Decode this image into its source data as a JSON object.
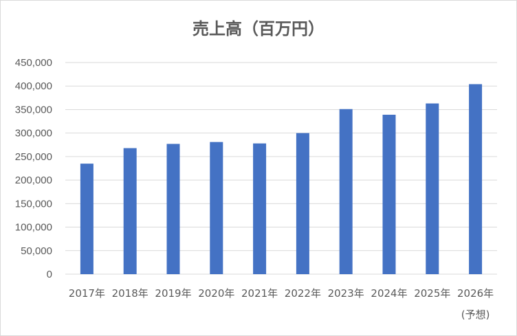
{
  "chart_data": {
    "type": "bar",
    "title": "売上高（百万円）",
    "categories": [
      "2017年",
      "2018年",
      "2019年",
      "2020年",
      "2021年",
      "2022年",
      "2023年",
      "2024年",
      "2025年",
      "2026年"
    ],
    "category_notes": [
      "",
      "",
      "",
      "",
      "",
      "",
      "",
      "",
      "",
      "(予想)"
    ],
    "values": [
      235000,
      268000,
      277000,
      281000,
      278000,
      300000,
      351000,
      339000,
      363000,
      404000
    ],
    "ylim": [
      0,
      450000
    ],
    "yticks": [
      0,
      50000,
      100000,
      150000,
      200000,
      250000,
      300000,
      350000,
      400000,
      450000
    ],
    "ytick_labels": [
      "0",
      "50,000",
      "100,000",
      "150,000",
      "200,000",
      "250,000",
      "300,000",
      "350,000",
      "400,000",
      "450,000"
    ],
    "grid": true,
    "legend": "none",
    "bar_color": "#4472c4",
    "grid_color": "#d9d9d9",
    "text_color": "#595959"
  }
}
